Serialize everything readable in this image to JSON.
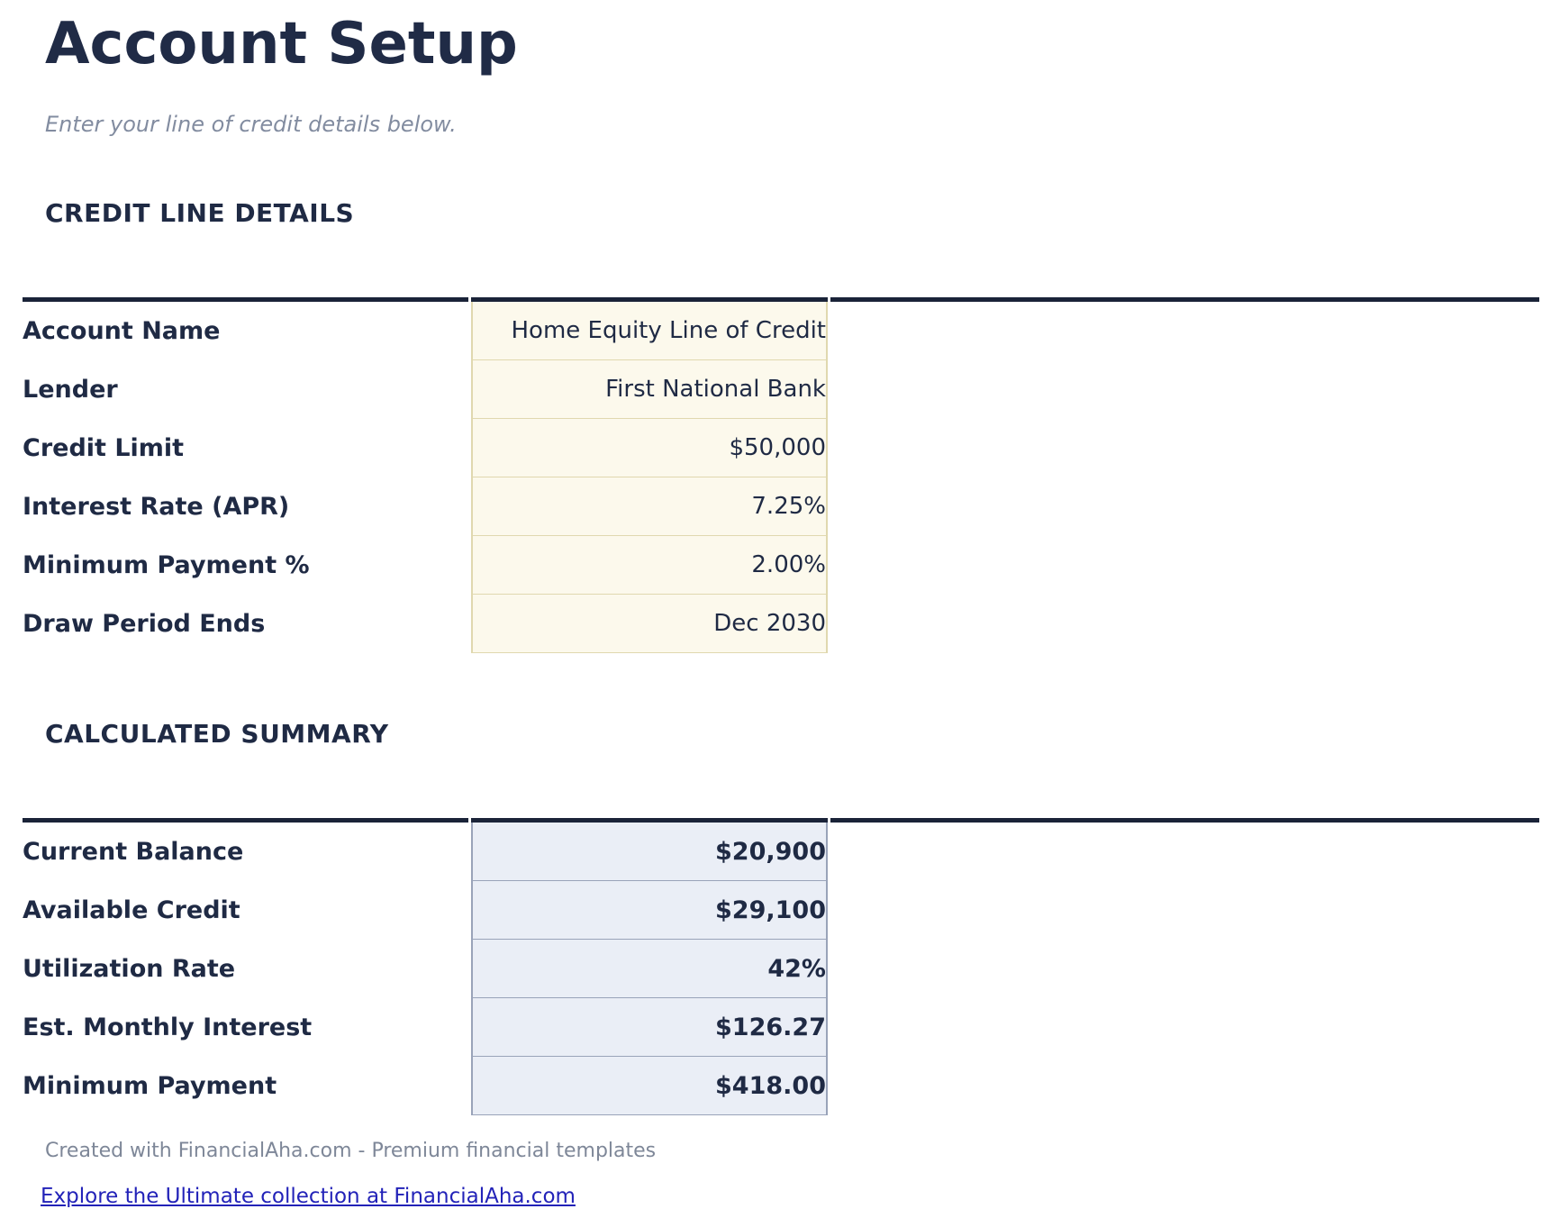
{
  "page": {
    "title": "Account Setup",
    "subtitle": "Enter your line of credit details below."
  },
  "credit_details": {
    "section_title": "CREDIT LINE DETAILS",
    "rows": [
      {
        "label": "Account Name",
        "value": "Home Equity Line of Credit"
      },
      {
        "label": "Lender",
        "value": "First National Bank"
      },
      {
        "label": "Credit Limit",
        "value": "$50,000"
      },
      {
        "label": "Interest Rate (APR)",
        "value": "7.25%"
      },
      {
        "label": "Minimum Payment %",
        "value": "2.00%"
      },
      {
        "label": "Draw Period Ends",
        "value": "Dec 2030"
      }
    ]
  },
  "calculated_summary": {
    "section_title": "CALCULATED SUMMARY",
    "rows": [
      {
        "label": "Current Balance",
        "value": "$20,900"
      },
      {
        "label": "Available Credit",
        "value": "$29,100"
      },
      {
        "label": "Utilization Rate",
        "value": "42%"
      },
      {
        "label": "Est. Monthly Interest",
        "value": "$126.27"
      },
      {
        "label": "Minimum Payment",
        "value": "$418.00"
      }
    ]
  },
  "footer": {
    "credit_line": "Created with FinancialAha.com - Premium financial templates",
    "link_text": "Explore the Ultimate collection at FinancialAha.com"
  },
  "colors": {
    "heading_navy": "#1F2A44",
    "section_rule_navy": "#1A2338",
    "input_cell_bg": "#FCF9EC",
    "input_cell_border": "#E0D8AF",
    "summary_cell_bg": "#EAEEF6",
    "summary_cell_border": "#99A3B9",
    "muted_gray": "#828CA0",
    "footer_gray": "#7E8798",
    "link_blue": "#2222B8"
  }
}
